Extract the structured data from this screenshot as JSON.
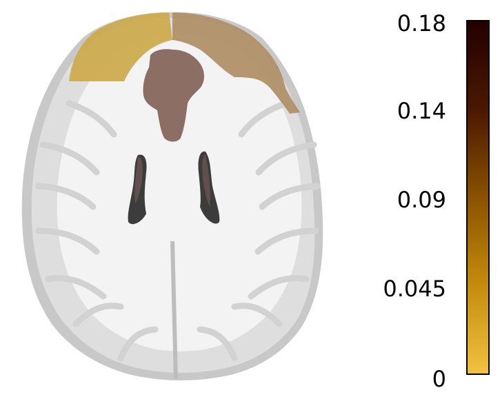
{
  "figure": {
    "colormap": {
      "stops": [
        "#f1c241",
        "#c48c0c",
        "#8a5200",
        "#4a1800",
        "#240000"
      ],
      "ticks": [
        "0.18",
        "0.14",
        "0.09",
        "0.045",
        "0"
      ],
      "range": [
        0,
        0.18
      ]
    },
    "colors": {
      "brain_outer": "#c4c4c4",
      "white_matter": "#f2f2f2",
      "gray_matter": "#dcdcdc",
      "ventricle": "#3a3a3a",
      "region_frontal_left": "#cda94c",
      "region_frontal_right": "#b09068",
      "region_medial": "#8c6e64"
    }
  }
}
